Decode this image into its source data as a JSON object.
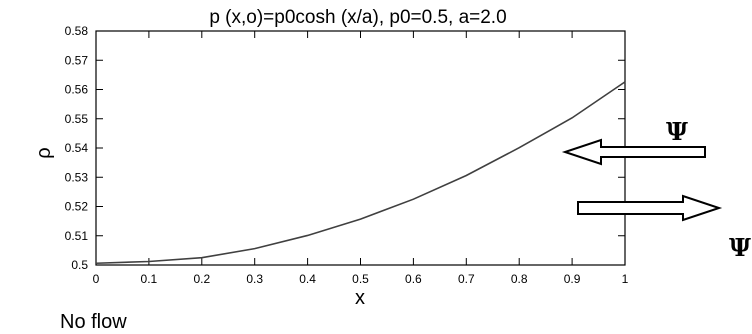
{
  "chart_data": {
    "type": "line",
    "title": "p (x,o)=p0cosh (x/a), p0=0.5, a=2.0",
    "xlabel": "x",
    "ylabel": "ρ",
    "xlim": [
      0,
      1
    ],
    "ylim": [
      0.5,
      0.58
    ],
    "xticks": [
      "0",
      "0.1",
      "0.2",
      "0.3",
      "0.4",
      "0.5",
      "0.6",
      "0.7",
      "0.8",
      "0.9",
      "1"
    ],
    "yticks": [
      "0.5",
      "0.51",
      "0.52",
      "0.53",
      "0.54",
      "0.55",
      "0.56",
      "0.57",
      "0.58"
    ],
    "grid": false,
    "line_color": "#404040",
    "series": [
      {
        "x": [
          0,
          0.1,
          0.2,
          0.3,
          0.4,
          0.5,
          0.6,
          0.7,
          0.8,
          0.9,
          1.0
        ],
        "y": [
          0.5006,
          0.5012,
          0.5025,
          0.5056,
          0.5101,
          0.5157,
          0.5225,
          0.5306,
          0.5401,
          0.5503,
          0.5626
        ]
      }
    ]
  },
  "annotations": {
    "psi_top": "Ψ",
    "psi_bottom": "Ψ",
    "caption": "No flow"
  }
}
